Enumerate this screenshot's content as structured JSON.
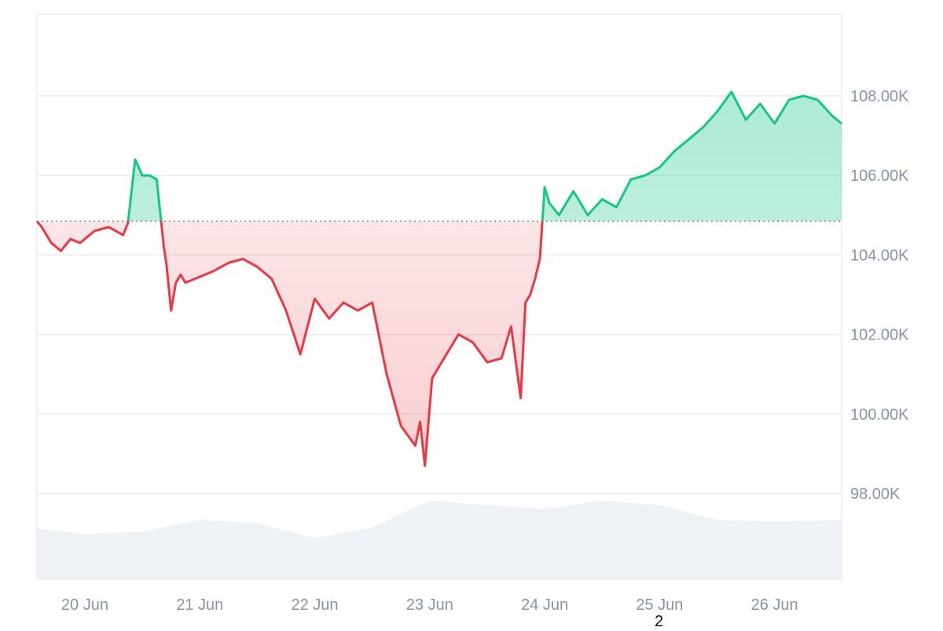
{
  "chart_data": {
    "type": "area",
    "title": "",
    "xlabel": "",
    "ylabel": "",
    "baseline": 104850,
    "ylim": [
      96000,
      110000
    ],
    "y_ticks": [
      {
        "value": 98000,
        "label": "98.00K"
      },
      {
        "value": 100000,
        "label": "100.00K"
      },
      {
        "value": 102000,
        "label": "102.00K"
      },
      {
        "value": 104000,
        "label": "104.00K"
      },
      {
        "value": 106000,
        "label": "106.00K"
      },
      {
        "value": 108000,
        "label": "108.00K"
      }
    ],
    "x_ticks": [
      "20 Jun",
      "21 Jun",
      "22 Jun",
      "23 Jun",
      "24 Jun",
      "25 Jun",
      "26 Jun"
    ],
    "x_range": [
      "19 Jun 14:00",
      "26 Jun 14:00"
    ],
    "grid": true,
    "series": [
      {
        "x": [
          "19 Jun 14:00",
          "19 Jun 15:00",
          "19 Jun 17:00",
          "19 Jun 19:00",
          "19 Jun 21:00",
          "19 Jun 23:00",
          "20 Jun 02:00",
          "20 Jun 05:00",
          "20 Jun 08:00",
          "20 Jun 09:00",
          "20 Jun 10:30",
          "20 Jun 12:00",
          "20 Jun 13:30",
          "20 Jun 15:00",
          "20 Jun 16:30",
          "20 Jun 17:00",
          "20 Jun 18:00",
          "20 Jun 19:00",
          "20 Jun 20:00",
          "20 Jun 21:00",
          "21 Jun 01:00",
          "21 Jun 03:00",
          "21 Jun 06:00",
          "21 Jun 09:00",
          "21 Jun 12:00",
          "21 Jun 15:00",
          "21 Jun 18:00",
          "21 Jun 21:00",
          "22 Jun 00:00",
          "22 Jun 03:00",
          "22 Jun 06:00",
          "22 Jun 09:00",
          "22 Jun 12:00",
          "22 Jun 15:00",
          "22 Jun 18:00",
          "22 Jun 21:00",
          "22 Jun 22:00",
          "22 Jun 23:00",
          "23 Jun 00:30",
          "23 Jun 02:00",
          "23 Jun 04:00",
          "23 Jun 06:00",
          "23 Jun 09:00",
          "23 Jun 12:00",
          "23 Jun 15:00",
          "23 Jun 17:00",
          "23 Jun 19:00",
          "23 Jun 20:00",
          "23 Jun 21:00",
          "23 Jun 22:00",
          "23 Jun 23:00",
          "24 Jun 00:00",
          "24 Jun 01:00",
          "24 Jun 03:00",
          "24 Jun 06:00",
          "24 Jun 09:00",
          "24 Jun 12:00",
          "24 Jun 15:00",
          "24 Jun 18:00",
          "24 Jun 21:00",
          "25 Jun 00:00",
          "25 Jun 03:00",
          "25 Jun 06:00",
          "25 Jun 09:00",
          "25 Jun 12:00",
          "25 Jun 15:00",
          "25 Jun 18:00",
          "25 Jun 21:00",
          "26 Jun 00:00",
          "26 Jun 03:00",
          "26 Jun 06:00",
          "26 Jun 09:00",
          "26 Jun 12:00",
          "26 Jun 14:00"
        ],
        "values": [
          104850,
          104700,
          104300,
          104100,
          104400,
          104300,
          104600,
          104700,
          104500,
          104800,
          106400,
          106000,
          106000,
          105900,
          104200,
          103800,
          102600,
          103300,
          103500,
          103300,
          103500,
          103600,
          103800,
          103900,
          103700,
          103400,
          102600,
          101500,
          102900,
          102400,
          102800,
          102600,
          102800,
          101000,
          99700,
          99200,
          99800,
          98700,
          100900,
          101200,
          101600,
          102000,
          101800,
          101300,
          101400,
          102200,
          100400,
          102800,
          103000,
          103400,
          103900,
          105700,
          105300,
          105000,
          105600,
          105000,
          105400,
          105200,
          105900,
          106000,
          106200,
          106600,
          106900,
          107200,
          107600,
          108100,
          107400,
          107800,
          107300,
          107900,
          108000,
          107900,
          107500,
          107300
        ]
      }
    ],
    "volume": {
      "x": [
        "19 Jun 14:00",
        "20 Jun 00:00",
        "20 Jun 12:00",
        "21 Jun 00:00",
        "21 Jun 12:00",
        "22 Jun 00:00",
        "22 Jun 12:00",
        "23 Jun 00:00",
        "23 Jun 12:00",
        "24 Jun 00:00",
        "24 Jun 12:00",
        "25 Jun 00:00",
        "25 Jun 12:00",
        "26 Jun 00:00",
        "26 Jun 14:00"
      ],
      "values": [
        0.62,
        0.55,
        0.58,
        0.72,
        0.68,
        0.5,
        0.63,
        0.95,
        0.9,
        0.85,
        0.95,
        0.9,
        0.72,
        0.7,
        0.72
      ]
    },
    "colors": {
      "up": "#16c784",
      "down": "#ea3943",
      "grid": "#e9ecf1",
      "axis_text": "#8a93a6",
      "volume": "#eef1f5",
      "baseline": "#6b7280"
    }
  },
  "footnote": "2"
}
